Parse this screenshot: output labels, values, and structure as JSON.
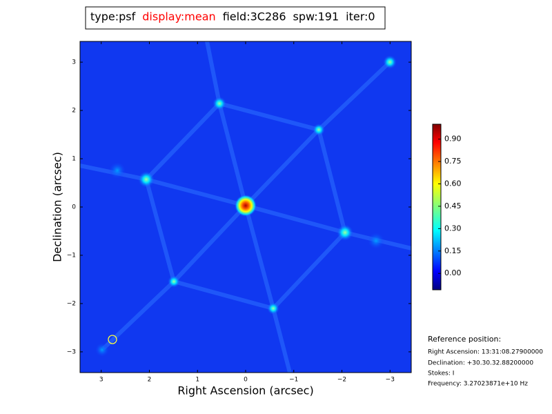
{
  "chart_data": {
    "type": "image",
    "title_parts": [
      {
        "text": "type:psf",
        "color": "#000000"
      },
      {
        "text": "display:mean",
        "color": "#ff0000"
      },
      {
        "text": "field:3C286",
        "color": "#000000"
      },
      {
        "text": "spw:191",
        "color": "#000000"
      },
      {
        "text": "iter:0",
        "color": "#000000"
      }
    ],
    "x_label": "Right Ascension (arcsec)",
    "y_label": "Declination (arcsec)",
    "xlim": [
      3.44,
      -3.44
    ],
    "ylim": [
      -3.43,
      3.43
    ],
    "xticks": [
      3,
      2,
      1,
      0,
      {
        "value": -1,
        "label": "−1"
      },
      {
        "value": -2,
        "label": "−2"
      },
      {
        "value": -3,
        "label": "−3"
      }
    ],
    "yticks": [
      {
        "value": -3,
        "label": "−3"
      },
      {
        "value": -2,
        "label": "−2"
      },
      {
        "value": -1,
        "label": "−1"
      },
      0,
      1,
      2,
      3
    ],
    "colorbar": {
      "clim": [
        -0.11,
        1.0
      ],
      "ticks": [
        {
          "value": 0,
          "label": "0.00"
        },
        {
          "value": 0.15,
          "label": "0.15"
        },
        {
          "value": 0.3,
          "label": "0.30"
        },
        {
          "value": 0.45,
          "label": "0.45"
        },
        {
          "value": 0.6,
          "label": "0.60"
        },
        {
          "value": 0.75,
          "label": "0.75"
        },
        {
          "value": 0.9,
          "label": "0.90"
        }
      ]
    },
    "annotations": [
      "Reference position:",
      "Right Ascension: 13:31:08.27900000",
      "Declination: +30.30.32.88200000",
      "Stokes: I",
      "Frequency: 3.27023871e+10 Hz"
    ]
  }
}
